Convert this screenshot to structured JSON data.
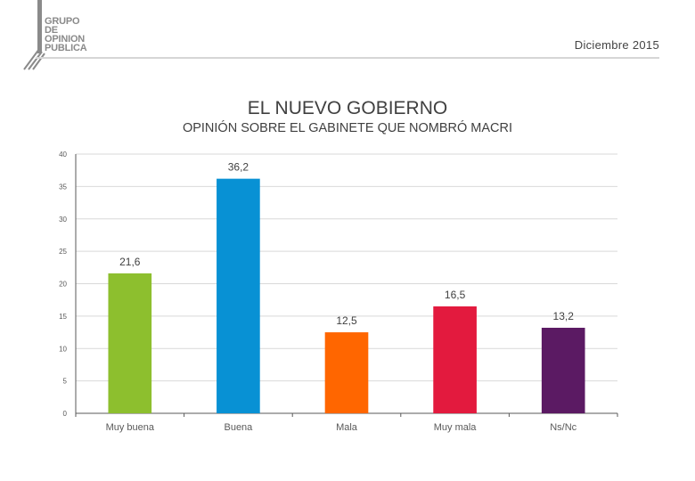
{
  "header": {
    "logo_lines": [
      "GRUPO",
      "DE",
      "OPINION",
      "PUBLICA"
    ],
    "date": "Diciembre 2015"
  },
  "colors": {
    "grid": "#d9d9d9",
    "axis": "#595959",
    "logo_gray": "#8a8a8a"
  },
  "chart_data": {
    "type": "bar",
    "title": "EL NUEVO GOBIERNO",
    "subtitle": "OPINIÓN SOBRE EL GABINETE QUE NOMBRÓ MACRI",
    "xlabel": "",
    "ylabel": "",
    "categories": [
      "Muy buena",
      "Buena",
      "Mala",
      "Muy mala",
      "Ns/Nc"
    ],
    "values": [
      21.6,
      36.2,
      12.5,
      16.5,
      13.2
    ],
    "value_labels": [
      "21,6",
      "36,2",
      "12,5",
      "16,5",
      "13,2"
    ],
    "bar_colors": [
      "#8dbf2e",
      "#0891d4",
      "#ff6600",
      "#e31a3e",
      "#5b1a63"
    ],
    "ylim": [
      0,
      40
    ],
    "yticks": [
      0,
      5,
      10,
      15,
      20,
      25,
      30,
      35,
      40
    ],
    "grid": true,
    "legend": "none"
  }
}
